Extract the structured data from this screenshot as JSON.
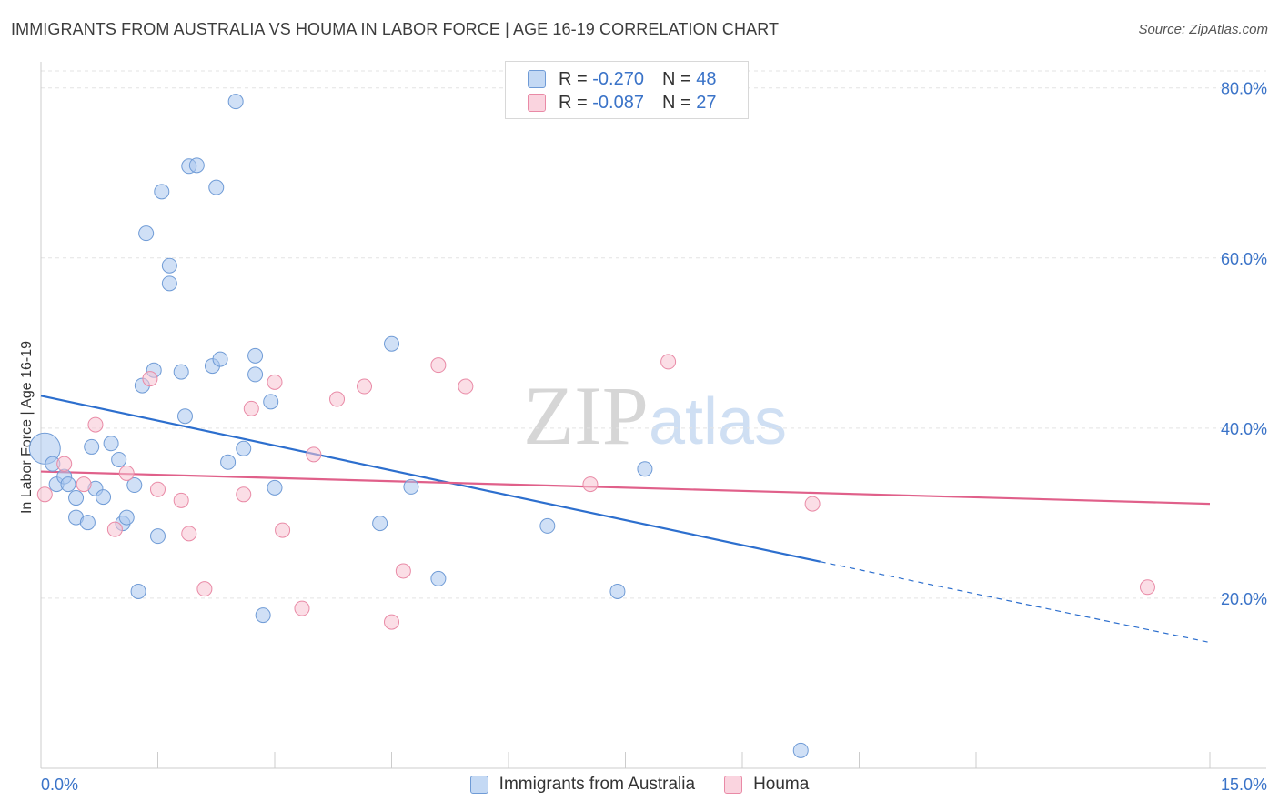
{
  "title": "IMMIGRANTS FROM AUSTRALIA VS HOUMA IN LABOR FORCE | AGE 16-19 CORRELATION CHART",
  "source": "Source: ZipAtlas.com",
  "watermark": "ZIPatlas",
  "legend_top": {
    "rows": [
      {
        "r_label": "R =",
        "r_value": "-0.270",
        "n_label": "N =",
        "n_value": "48"
      },
      {
        "r_label": "R =",
        "r_value": "-0.087",
        "n_label": "N =",
        "n_value": "27"
      }
    ]
  },
  "chart_data": {
    "type": "scatter",
    "title": "IMMIGRANTS FROM AUSTRALIA VS HOUMA IN LABOR FORCE | AGE 16-19 CORRELATION CHART",
    "xlabel": "",
    "ylabel": "In Labor Force | Age 16-19",
    "xlim": [
      0,
      15
    ],
    "ylim": [
      0,
      82
    ],
    "x_tick_labels": [
      "0.0%",
      "15.0%"
    ],
    "y_ticks": [
      20,
      40,
      60,
      80
    ],
    "y_tick_labels": [
      "20.0%",
      "40.0%",
      "60.0%",
      "80.0%"
    ],
    "grid": true,
    "legend_position": "bottom",
    "series": [
      {
        "name": "Immigrants from Australia",
        "color": "#a9c7ee",
        "stroke": "#6f9bd6",
        "trend_color": "#2d6fce",
        "trend": {
          "x0": 0,
          "y0": 43.8,
          "x1": 10.0,
          "y1": 24.3,
          "dash_to_x": 15,
          "dash_to_y": 14.8
        },
        "points": [
          [
            0.05,
            37.6
          ],
          [
            0.15,
            35.8
          ],
          [
            0.2,
            33.4
          ],
          [
            0.3,
            34.3
          ],
          [
            0.35,
            33.4
          ],
          [
            0.45,
            31.8
          ],
          [
            0.45,
            29.5
          ],
          [
            0.6,
            28.9
          ],
          [
            0.65,
            37.8
          ],
          [
            0.7,
            32.9
          ],
          [
            0.8,
            31.9
          ],
          [
            0.9,
            38.2
          ],
          [
            1.0,
            36.3
          ],
          [
            1.05,
            28.8
          ],
          [
            1.1,
            29.5
          ],
          [
            1.2,
            33.3
          ],
          [
            1.25,
            20.8
          ],
          [
            1.3,
            45.0
          ],
          [
            1.35,
            62.9
          ],
          [
            1.45,
            46.8
          ],
          [
            1.5,
            27.3
          ],
          [
            1.55,
            67.8
          ],
          [
            1.65,
            57.0
          ],
          [
            1.65,
            59.1
          ],
          [
            1.8,
            46.6
          ],
          [
            1.85,
            41.4
          ],
          [
            1.9,
            70.8
          ],
          [
            2.0,
            70.9
          ],
          [
            2.2,
            47.3
          ],
          [
            2.25,
            68.3
          ],
          [
            2.3,
            48.1
          ],
          [
            2.4,
            36.0
          ],
          [
            2.5,
            78.4
          ],
          [
            2.6,
            37.6
          ],
          [
            2.75,
            48.5
          ],
          [
            2.75,
            46.3
          ],
          [
            2.85,
            18.0
          ],
          [
            2.95,
            43.1
          ],
          [
            3.0,
            33.0
          ],
          [
            4.35,
            28.8
          ],
          [
            4.5,
            49.9
          ],
          [
            4.75,
            33.1
          ],
          [
            5.1,
            22.3
          ],
          [
            6.5,
            28.5
          ],
          [
            7.4,
            20.8
          ],
          [
            7.75,
            35.2
          ],
          [
            9.75,
            2.1
          ]
        ],
        "point_sizes": {
          "0": 34
        }
      },
      {
        "name": "Houma",
        "color": "#f7c3d2",
        "stroke": "#e98aa6",
        "trend_color": "#e0608a",
        "trend": {
          "x0": 0,
          "y0": 34.9,
          "x1": 15,
          "y1": 31.1
        },
        "points": [
          [
            0.05,
            32.2
          ],
          [
            0.3,
            35.8
          ],
          [
            0.55,
            33.4
          ],
          [
            0.7,
            40.4
          ],
          [
            0.95,
            28.1
          ],
          [
            1.1,
            34.7
          ],
          [
            1.4,
            45.8
          ],
          [
            1.5,
            32.8
          ],
          [
            1.8,
            31.5
          ],
          [
            1.9,
            27.6
          ],
          [
            2.1,
            21.1
          ],
          [
            2.6,
            32.2
          ],
          [
            2.7,
            42.3
          ],
          [
            3.1,
            28.0
          ],
          [
            3.0,
            45.4
          ],
          [
            3.35,
            18.8
          ],
          [
            3.5,
            36.9
          ],
          [
            3.8,
            43.4
          ],
          [
            4.15,
            44.9
          ],
          [
            4.5,
            17.2
          ],
          [
            4.65,
            23.2
          ],
          [
            5.1,
            47.4
          ],
          [
            5.45,
            44.9
          ],
          [
            7.05,
            33.4
          ],
          [
            8.05,
            47.8
          ],
          [
            9.9,
            31.1
          ],
          [
            14.2,
            21.3
          ]
        ]
      }
    ]
  }
}
